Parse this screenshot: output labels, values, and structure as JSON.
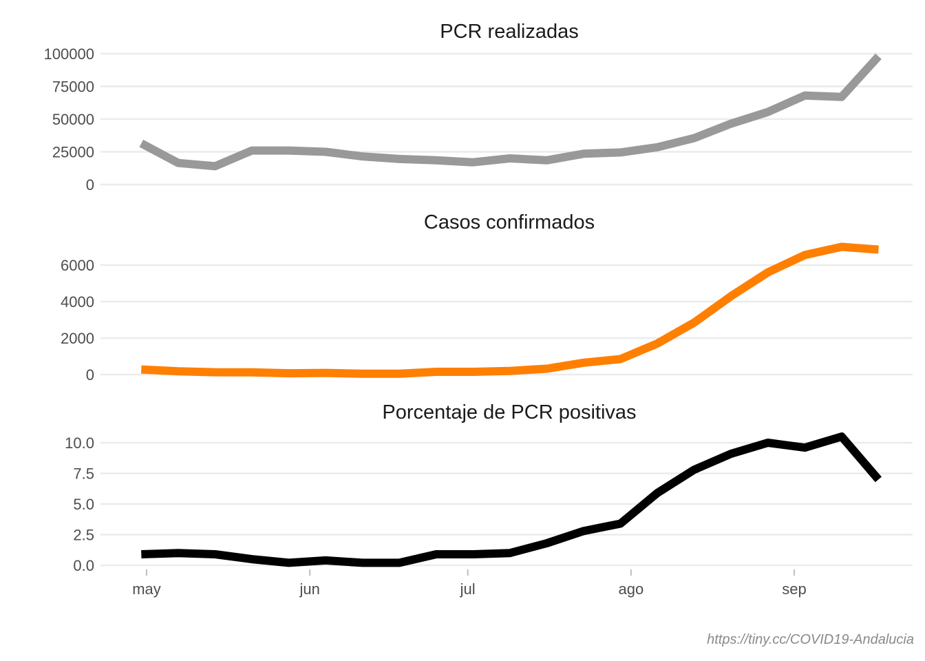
{
  "caption": "https://tiny.cc/COVID19-Andalucia",
  "x_axis": {
    "type": "date",
    "ticks": [
      {
        "label": "may",
        "date": "2020-05-01"
      },
      {
        "label": "jun",
        "date": "2020-06-01"
      },
      {
        "label": "jul",
        "date": "2020-07-01"
      },
      {
        "label": "ago",
        "date": "2020-08-01"
      },
      {
        "label": "sep",
        "date": "2020-09-01"
      }
    ]
  },
  "chart_data": [
    {
      "type": "line",
      "title": "PCR realizadas",
      "color": "#999999",
      "ylim": [
        0,
        100000
      ],
      "yticks": [
        0,
        25000,
        50000,
        75000,
        100000
      ],
      "ytick_labels": [
        "0",
        "25000",
        "50000",
        "75000",
        "100000"
      ],
      "grid": true,
      "series": [
        {
          "x": [
            "2020-04-30",
            "2020-05-07",
            "2020-05-14",
            "2020-05-21",
            "2020-05-28",
            "2020-06-04",
            "2020-06-11",
            "2020-06-18",
            "2020-06-25",
            "2020-07-02",
            "2020-07-09",
            "2020-07-16",
            "2020-07-23",
            "2020-07-30",
            "2020-08-06",
            "2020-08-13",
            "2020-08-20",
            "2020-08-27",
            "2020-09-03",
            "2020-09-10",
            "2020-09-17"
          ],
          "values": [
            31500,
            16500,
            14000,
            26000,
            26000,
            25000,
            21500,
            19500,
            18500,
            17000,
            20000,
            18500,
            23500,
            24500,
            28500,
            35500,
            46500,
            55500,
            68000,
            67000,
            98000
          ]
        }
      ]
    },
    {
      "type": "line",
      "title": "Casos confirmados",
      "color": "#ff7f00",
      "ylim": [
        0,
        7000
      ],
      "yticks": [
        0,
        2000,
        4000,
        6000
      ],
      "ytick_labels": [
        "0",
        "2000",
        "4000",
        "6000"
      ],
      "grid": true,
      "series": [
        {
          "x": [
            "2020-04-30",
            "2020-05-07",
            "2020-05-14",
            "2020-05-21",
            "2020-05-28",
            "2020-06-04",
            "2020-06-11",
            "2020-06-18",
            "2020-06-25",
            "2020-07-02",
            "2020-07-09",
            "2020-07-16",
            "2020-07-23",
            "2020-07-30",
            "2020-08-06",
            "2020-08-13",
            "2020-08-20",
            "2020-08-27",
            "2020-09-03",
            "2020-09-10",
            "2020-09-17"
          ],
          "values": [
            280,
            180,
            130,
            120,
            70,
            90,
            50,
            50,
            150,
            150,
            200,
            320,
            650,
            850,
            1700,
            2850,
            4300,
            5600,
            6550,
            7000,
            6850
          ]
        }
      ]
    },
    {
      "type": "line",
      "title": "Porcentaje de PCR positivas",
      "color": "#000000",
      "ylim": [
        0,
        10.5
      ],
      "yticks": [
        0,
        2.5,
        5,
        7.5,
        10
      ],
      "ytick_labels": [
        "0.0",
        "2.5",
        "5.0",
        "7.5",
        "10.0"
      ],
      "grid": true,
      "series": [
        {
          "x": [
            "2020-04-30",
            "2020-05-07",
            "2020-05-14",
            "2020-05-21",
            "2020-05-28",
            "2020-06-04",
            "2020-06-11",
            "2020-06-18",
            "2020-06-25",
            "2020-07-02",
            "2020-07-09",
            "2020-07-16",
            "2020-07-23",
            "2020-07-30",
            "2020-08-06",
            "2020-08-13",
            "2020-08-20",
            "2020-08-27",
            "2020-09-03",
            "2020-09-10",
            "2020-09-17"
          ],
          "values": [
            0.9,
            1.0,
            0.9,
            0.5,
            0.2,
            0.4,
            0.2,
            0.2,
            0.9,
            0.9,
            1.0,
            1.8,
            2.8,
            3.4,
            5.9,
            7.8,
            9.1,
            10.0,
            9.6,
            10.5,
            7.0
          ]
        }
      ]
    }
  ]
}
